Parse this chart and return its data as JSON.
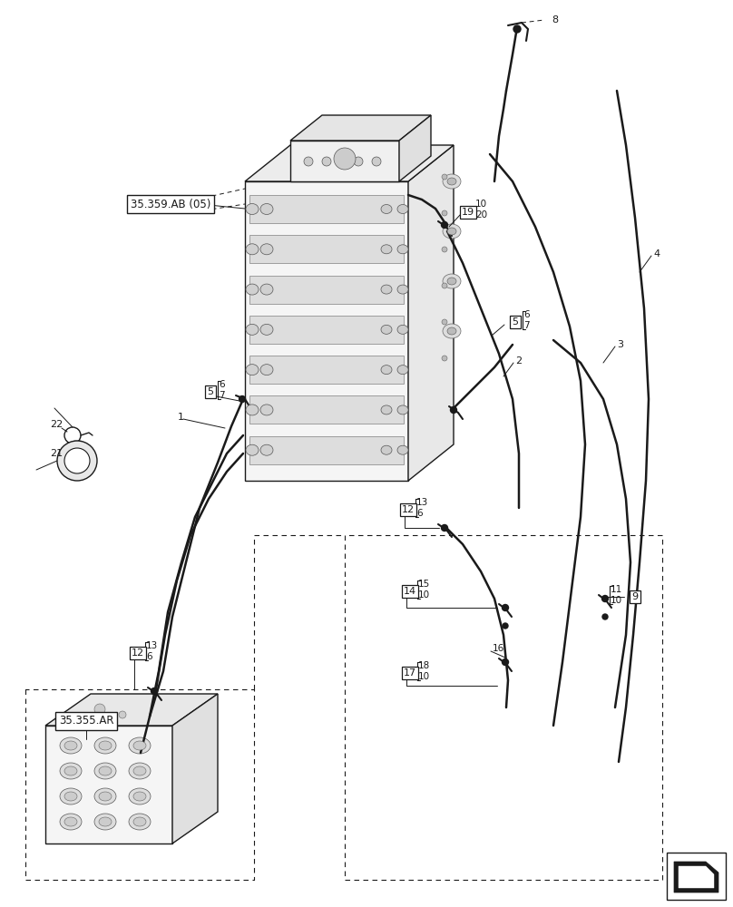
{
  "bg_color": "#ffffff",
  "line_color": "#1a1a1a",
  "fig_width": 8.08,
  "fig_height": 10.0,
  "dpi": 100,
  "labels": {
    "ref_35359AB": "35.359.AB (05)",
    "ref_35355AR": "35.355.AR"
  }
}
